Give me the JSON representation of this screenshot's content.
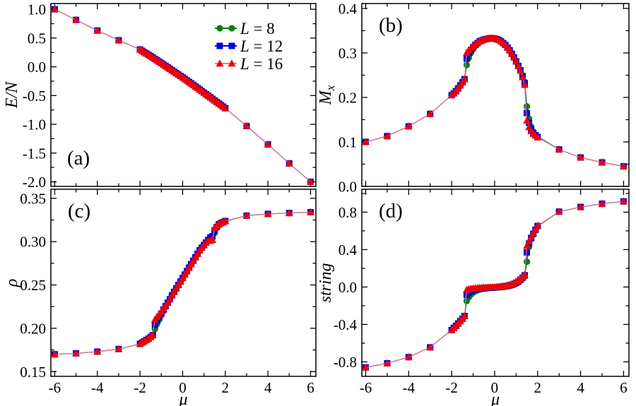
{
  "figure": {
    "background": "#ffffff",
    "frame_color": "#000000"
  },
  "legend": {
    "position": "panel-a-top-right",
    "items": [
      {
        "label": "L = 8",
        "label_prefix": "L",
        "label_rest": " = 8",
        "marker": "circle",
        "color": "#008000",
        "line_color": "#008000"
      },
      {
        "label": "L = 12",
        "label_prefix": "L",
        "label_rest": " = 12",
        "marker": "square",
        "color": "#0000dd",
        "line_color": "#0000dd"
      },
      {
        "label": "L = 16",
        "label_prefix": "L",
        "label_rest": " = 16",
        "marker": "triangle",
        "color": "#ee0000",
        "line_color": "#f08080"
      }
    ]
  },
  "chart_data": {
    "type": "line",
    "x_label": "μ",
    "xlim": [
      -6.18,
      6.25
    ],
    "xticks": {
      "values": [
        -6,
        -4,
        -2,
        0,
        2,
        4,
        6
      ],
      "labels": [
        "-6",
        "-4",
        "-2",
        "0",
        "2",
        "4",
        "6"
      ],
      "minor_step": 1
    },
    "x": [
      -6,
      -5,
      -4,
      -3,
      -2,
      -1.9,
      -1.8,
      -1.7,
      -1.6,
      -1.5,
      -1.4,
      -1.3,
      -1.2,
      -1.1,
      -1.0,
      -0.9,
      -0.8,
      -0.7,
      -0.6,
      -0.5,
      -0.4,
      -0.3,
      -0.2,
      -0.1,
      0.0,
      0.1,
      0.2,
      0.3,
      0.4,
      0.5,
      0.6,
      0.7,
      0.8,
      0.9,
      1.0,
      1.1,
      1.2,
      1.3,
      1.4,
      1.5,
      1.6,
      1.7,
      1.8,
      1.9,
      2.0,
      3,
      4,
      5,
      6
    ],
    "series_names": [
      "L = 8",
      "L = 12",
      "L = 16"
    ],
    "panels": [
      {
        "id": "a",
        "panel_label": "(a)",
        "label_pos": "bottom-left",
        "ylabel": {
          "main": "E/N"
        },
        "ylim": [
          -2.08,
          1.1
        ],
        "show_x_labels": false,
        "show_legend": true,
        "yticks": {
          "values": [
            1.0,
            0.5,
            0.0,
            -0.5,
            -1.0,
            -1.5,
            -2.0
          ],
          "labels": [
            "1.0",
            "0.5",
            "0.0",
            "-0.5",
            "-1.0",
            "-1.5",
            "-2.0"
          ],
          "minor_step": 0.25
        },
        "series": [
          {
            "name": "L = 8",
            "values": [
              1.0,
              0.815,
              0.63,
              0.46,
              0.3,
              0.277,
              0.254,
              0.231,
              0.208,
              0.185,
              0.161,
              0.137,
              0.113,
              0.089,
              0.065,
              0.04,
              0.015,
              -0.01,
              -0.035,
              -0.06,
              -0.085,
              -0.11,
              -0.135,
              -0.16,
              -0.185,
              -0.211,
              -0.237,
              -0.263,
              -0.289,
              -0.315,
              -0.342,
              -0.369,
              -0.396,
              -0.423,
              -0.45,
              -0.477,
              -0.504,
              -0.531,
              -0.558,
              -0.585,
              -0.612,
              -0.639,
              -0.666,
              -0.693,
              -0.72,
              -1.03,
              -1.35,
              -1.68,
              -2.0
            ]
          },
          {
            "name": "L = 12",
            "values": [
              1.0,
              0.815,
              0.63,
              0.46,
              0.3,
              0.277,
              0.254,
              0.231,
              0.208,
              0.185,
              0.161,
              0.137,
              0.113,
              0.089,
              0.065,
              0.04,
              0.015,
              -0.01,
              -0.035,
              -0.06,
              -0.085,
              -0.11,
              -0.135,
              -0.16,
              -0.185,
              -0.211,
              -0.237,
              -0.263,
              -0.289,
              -0.315,
              -0.342,
              -0.369,
              -0.396,
              -0.423,
              -0.45,
              -0.477,
              -0.504,
              -0.531,
              -0.558,
              -0.585,
              -0.612,
              -0.639,
              -0.666,
              -0.693,
              -0.72,
              -1.03,
              -1.35,
              -1.68,
              -2.0
            ]
          },
          {
            "name": "L = 16",
            "values": [
              1.0,
              0.815,
              0.63,
              0.46,
              0.3,
              0.277,
              0.254,
              0.231,
              0.208,
              0.185,
              0.161,
              0.137,
              0.113,
              0.089,
              0.065,
              0.04,
              0.015,
              -0.01,
              -0.035,
              -0.06,
              -0.085,
              -0.11,
              -0.135,
              -0.16,
              -0.185,
              -0.211,
              -0.237,
              -0.263,
              -0.289,
              -0.315,
              -0.342,
              -0.369,
              -0.396,
              -0.423,
              -0.45,
              -0.477,
              -0.504,
              -0.531,
              -0.558,
              -0.585,
              -0.612,
              -0.639,
              -0.666,
              -0.693,
              -0.72,
              -1.03,
              -1.35,
              -1.68,
              -2.0
            ]
          }
        ]
      },
      {
        "id": "b",
        "panel_label": "(b)",
        "label_pos": "top-left",
        "ylabel": {
          "main": "M",
          "sub": "x"
        },
        "ylim": [
          0.0,
          0.411
        ],
        "show_x_labels": false,
        "show_legend": false,
        "yticks": {
          "values": [
            0.4,
            0.3,
            0.2,
            0.1,
            0.0
          ],
          "labels": [
            "0.4",
            "0.3",
            "0.2",
            "0.1",
            "0.0"
          ],
          "minor_step": 0.05
        },
        "series": [
          {
            "name": "L = 8",
            "values": [
              0.1,
              0.113,
              0.135,
              0.163,
              0.205,
              0.209,
              0.214,
              0.22,
              0.227,
              0.234,
              0.241,
              0.273,
              0.289,
              0.3,
              0.308,
              0.316,
              0.321,
              0.325,
              0.328,
              0.33,
              0.331,
              0.332,
              0.333,
              0.333,
              0.332,
              0.331,
              0.329,
              0.326,
              0.322,
              0.318,
              0.312,
              0.306,
              0.298,
              0.29,
              0.281,
              0.271,
              0.261,
              0.25,
              0.235,
              0.18,
              0.152,
              0.134,
              0.123,
              0.116,
              0.112,
              0.083,
              0.065,
              0.054,
              0.045
            ]
          },
          {
            "name": "L = 12",
            "values": [
              0.1,
              0.113,
              0.135,
              0.163,
              0.205,
              0.209,
              0.214,
              0.22,
              0.227,
              0.234,
              0.241,
              0.287,
              0.3,
              0.307,
              0.313,
              0.318,
              0.322,
              0.326,
              0.328,
              0.33,
              0.331,
              0.332,
              0.333,
              0.333,
              0.332,
              0.331,
              0.329,
              0.326,
              0.322,
              0.318,
              0.312,
              0.306,
              0.298,
              0.29,
              0.281,
              0.271,
              0.261,
              0.248,
              0.232,
              0.165,
              0.143,
              0.128,
              0.12,
              0.115,
              0.111,
              0.083,
              0.065,
              0.054,
              0.045
            ]
          },
          {
            "name": "L = 16",
            "values": [
              0.1,
              0.113,
              0.135,
              0.163,
              0.205,
              0.209,
              0.214,
              0.22,
              0.227,
              0.234,
              0.241,
              0.3,
              0.306,
              0.311,
              0.315,
              0.319,
              0.323,
              0.326,
              0.328,
              0.33,
              0.331,
              0.332,
              0.333,
              0.333,
              0.332,
              0.331,
              0.329,
              0.326,
              0.322,
              0.318,
              0.312,
              0.306,
              0.298,
              0.29,
              0.281,
              0.271,
              0.26,
              0.245,
              0.228,
              0.148,
              0.133,
              0.124,
              0.118,
              0.114,
              0.11,
              0.083,
              0.065,
              0.054,
              0.045
            ]
          }
        ]
      },
      {
        "id": "c",
        "panel_label": "(c)",
        "label_pos": "top-left",
        "ylabel": {
          "main": "ρ"
        },
        "ylim": [
          0.1445,
          0.3605
        ],
        "show_x_labels": true,
        "show_legend": false,
        "yticks": {
          "values": [
            0.35,
            0.3,
            0.25,
            0.2,
            0.15
          ],
          "labels": [
            "0.35",
            "0.30",
            "0.25",
            "0.20",
            "0.15"
          ],
          "minor_step": 0.025
        },
        "series": [
          {
            "name": "L = 8",
            "values": [
              0.17,
              0.171,
              0.173,
              0.176,
              0.182,
              0.1835,
              0.185,
              0.1865,
              0.188,
              0.19,
              0.192,
              0.199,
              0.205,
              0.21,
              0.215,
              0.22,
              0.225,
              0.229,
              0.233,
              0.238,
              0.242,
              0.246,
              0.25,
              0.254,
              0.258,
              0.262,
              0.266,
              0.27,
              0.274,
              0.278,
              0.282,
              0.286,
              0.29,
              0.293,
              0.296,
              0.299,
              0.302,
              0.305,
              0.307,
              0.31,
              0.316,
              0.319,
              0.321,
              0.322,
              0.3235,
              0.33,
              0.332,
              0.333,
              0.334
            ]
          },
          {
            "name": "L = 12",
            "values": [
              0.17,
              0.171,
              0.173,
              0.176,
              0.182,
              0.1835,
              0.185,
              0.1865,
              0.188,
              0.19,
              0.192,
              0.204,
              0.209,
              0.213,
              0.217,
              0.2215,
              0.2255,
              0.2295,
              0.2335,
              0.238,
              0.242,
              0.246,
              0.25,
              0.254,
              0.258,
              0.262,
              0.266,
              0.27,
              0.274,
              0.278,
              0.282,
              0.286,
              0.29,
              0.293,
              0.296,
              0.299,
              0.302,
              0.305,
              0.306,
              0.313,
              0.317,
              0.32,
              0.3215,
              0.3225,
              0.3238,
              0.33,
              0.332,
              0.333,
              0.334
            ]
          },
          {
            "name": "L = 16",
            "values": [
              0.17,
              0.171,
              0.173,
              0.176,
              0.182,
              0.1835,
              0.185,
              0.1865,
              0.188,
              0.19,
              0.192,
              0.21,
              0.213,
              0.216,
              0.219,
              0.2225,
              0.226,
              0.2295,
              0.2335,
              0.238,
              0.242,
              0.246,
              0.25,
              0.254,
              0.258,
              0.262,
              0.266,
              0.27,
              0.274,
              0.278,
              0.282,
              0.286,
              0.29,
              0.293,
              0.296,
              0.299,
              0.301,
              0.301,
              0.302,
              0.316,
              0.318,
              0.32,
              0.3215,
              0.3225,
              0.3238,
              0.33,
              0.332,
              0.333,
              0.334
            ]
          }
        ]
      },
      {
        "id": "d",
        "panel_label": "(d)",
        "label_pos": "top-left",
        "ylabel": {
          "main": "string"
        },
        "ylim": [
          -0.955,
          1.045
        ],
        "show_x_labels": true,
        "show_legend": false,
        "yticks": {
          "values": [
            0.8,
            0.4,
            0.0,
            -0.4,
            -0.8
          ],
          "labels": [
            "0.8",
            "0.4",
            "0.0",
            "-0.4",
            "-0.8"
          ],
          "minor_step": 0.2
        },
        "series": [
          {
            "name": "L = 8",
            "values": [
              -0.86,
              -0.815,
              -0.75,
              -0.645,
              -0.46,
              -0.437,
              -0.415,
              -0.39,
              -0.365,
              -0.34,
              -0.31,
              -0.15,
              -0.11,
              -0.08,
              -0.06,
              -0.045,
              -0.035,
              -0.028,
              -0.022,
              -0.018,
              -0.015,
              -0.012,
              -0.01,
              -0.009,
              -0.008,
              -0.006,
              -0.004,
              -0.002,
              0.0,
              0.003,
              0.007,
              0.012,
              0.018,
              0.026,
              0.036,
              0.05,
              0.068,
              0.09,
              0.115,
              0.27,
              0.43,
              0.51,
              0.56,
              0.605,
              0.648,
              0.805,
              0.855,
              0.89,
              0.915
            ]
          },
          {
            "name": "L = 12",
            "values": [
              -0.86,
              -0.815,
              -0.75,
              -0.645,
              -0.46,
              -0.437,
              -0.415,
              -0.39,
              -0.365,
              -0.34,
              -0.31,
              -0.085,
              -0.06,
              -0.045,
              -0.035,
              -0.028,
              -0.022,
              -0.018,
              -0.015,
              -0.012,
              -0.01,
              -0.008,
              -0.007,
              -0.006,
              -0.005,
              -0.003,
              -0.001,
              0.002,
              0.005,
              0.008,
              0.012,
              0.017,
              0.024,
              0.033,
              0.044,
              0.058,
              0.078,
              0.1,
              0.125,
              0.37,
              0.465,
              0.525,
              0.57,
              0.612,
              0.652,
              0.805,
              0.855,
              0.89,
              0.915
            ]
          },
          {
            "name": "L = 16",
            "values": [
              -0.86,
              -0.815,
              -0.75,
              -0.645,
              -0.46,
              -0.437,
              -0.415,
              -0.39,
              -0.365,
              -0.34,
              -0.31,
              -0.03,
              -0.022,
              -0.018,
              -0.015,
              -0.012,
              -0.01,
              -0.008,
              -0.007,
              -0.006,
              -0.005,
              -0.004,
              -0.003,
              -0.003,
              -0.002,
              0.0,
              0.002,
              0.005,
              0.008,
              0.012,
              0.016,
              0.022,
              0.03,
              0.04,
              0.052,
              0.066,
              0.085,
              0.108,
              0.13,
              0.44,
              0.49,
              0.535,
              0.578,
              0.618,
              0.655,
              0.805,
              0.855,
              0.89,
              0.915
            ]
          }
        ]
      }
    ]
  }
}
